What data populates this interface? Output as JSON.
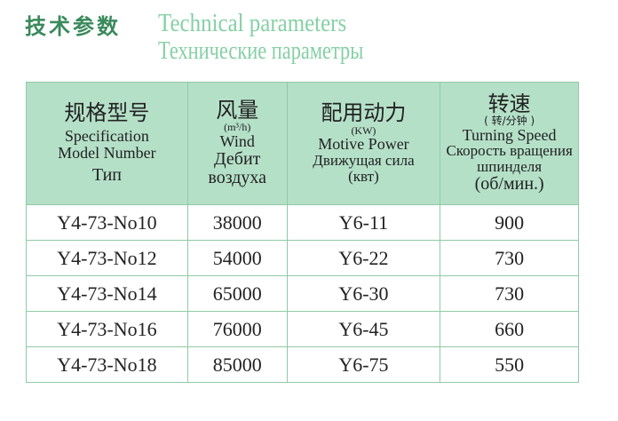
{
  "title": {
    "cn": "技术参数",
    "en": "Technical parameters",
    "ru": "Технические параметры"
  },
  "columns": [
    {
      "cn": "规格型号",
      "en": "Specification Model Number",
      "ru": "Тип"
    },
    {
      "cn": "风量",
      "unit": "(m³/h)",
      "en": "Wind",
      "ru": "Дебит воздуха"
    },
    {
      "cn": "配用动力",
      "unit": "(KW)",
      "en": "Motive Power",
      "ru": "Движущая сила",
      "ru_unit": "(квт)"
    },
    {
      "cn": "转速",
      "unit": "( 转/分钟 )",
      "en": "Turning Speed",
      "ru": "Скорость вращения шпинделя",
      "ru_unit": "(об/мин.)"
    }
  ],
  "rows": [
    [
      "Y4-73-No10",
      "38000",
      "Y6-11",
      "900"
    ],
    [
      "Y4-73-No12",
      "54000",
      "Y6-22",
      "730"
    ],
    [
      "Y4-73-No14",
      "65000",
      "Y6-30",
      "730"
    ],
    [
      "Y4-73-No16",
      "76000",
      "Y6-45",
      "660"
    ],
    [
      "Y4-73-No18",
      "85000",
      "Y6-75",
      "550"
    ]
  ],
  "colors": {
    "header_bg": "#b5e0c8",
    "border": "#8fcaa6",
    "title_cn": "#3a8a5c",
    "title_en": "#86cfa6"
  }
}
